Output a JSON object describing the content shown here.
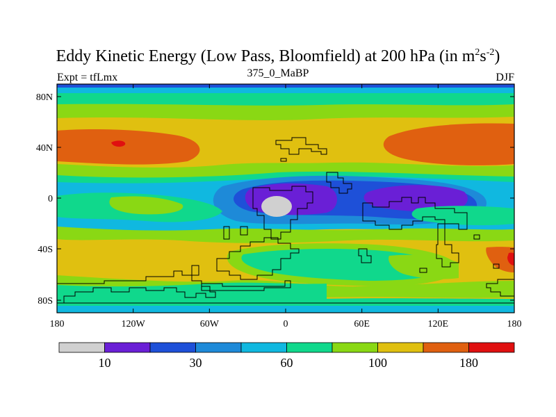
{
  "title": {
    "main": "Eddy Kinetic Energy (Low Pass, Bloomfield) at 200 hPa (in m",
    "sup1": "2",
    "mid": "s",
    "sup2": "-2",
    "end": ")"
  },
  "subtitle_left": "Expt = tfLmx",
  "subtitle_center": "375_0_MaBP",
  "subtitle_right": "DJF",
  "lat_ticks": [
    "80N",
    "40N",
    "0",
    "40S",
    "80S"
  ],
  "lon_ticks": [
    "180",
    "120W",
    "60W",
    "0",
    "60E",
    "120E",
    "180"
  ],
  "colorbar": {
    "colors": [
      "#d0d0d0",
      "#6a1fd6",
      "#1e50d8",
      "#1e8ad8",
      "#10b8e0",
      "#10d88c",
      "#8ad814",
      "#e0c010",
      "#e06010",
      "#e01010"
    ],
    "labels": [
      "10",
      "30",
      "60",
      "100",
      "180"
    ]
  }
}
